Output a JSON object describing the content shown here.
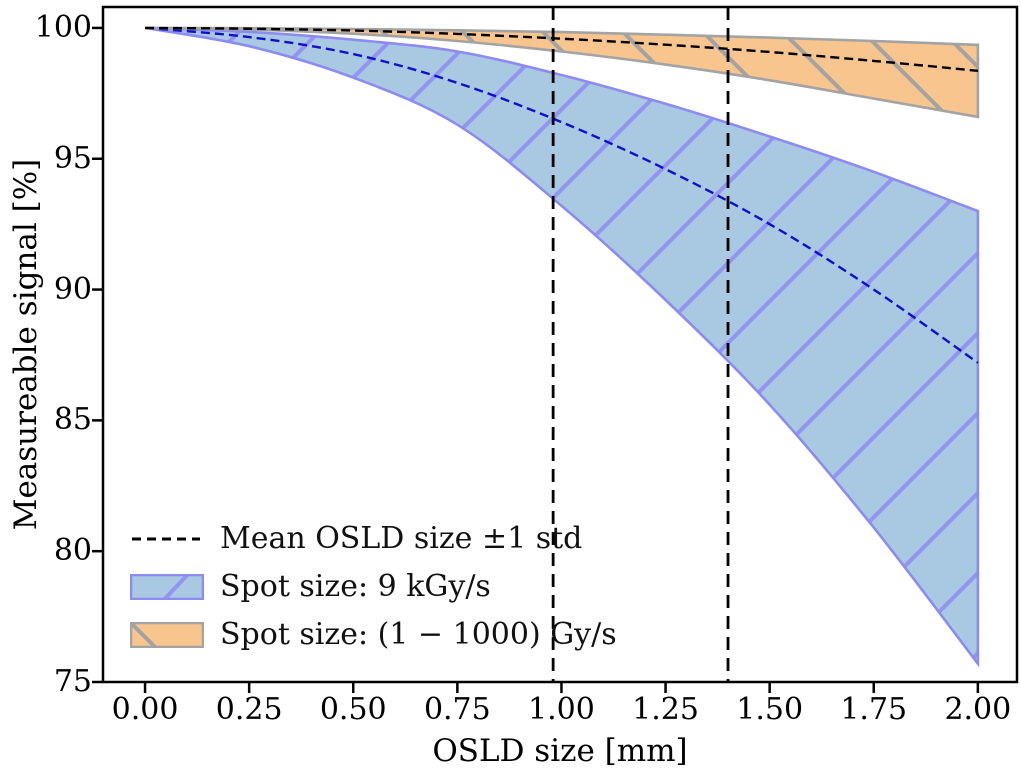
{
  "chart_data": {
    "type": "area",
    "title": "",
    "xlabel": "OSLD size [mm]",
    "ylabel": "Measureable signal [%]",
    "xlim": [
      -0.101,
      2.094
    ],
    "ylim": [
      75,
      100.8
    ],
    "xticks": [
      0,
      0.25,
      0.5,
      0.75,
      1.0,
      1.25,
      1.5,
      1.75,
      2.0
    ],
    "xtick_labels": [
      "0.00",
      "0.25",
      "0.50",
      "0.75",
      "1.00",
      "1.25",
      "1.50",
      "1.75",
      "2.00"
    ],
    "yticks": [
      75,
      80,
      85,
      90,
      95,
      100
    ],
    "ytick_labels": [
      "75",
      "80",
      "85",
      "90",
      "95",
      "100"
    ],
    "grid": false,
    "legend_position": "lower-left",
    "x": [
      0,
      0.25,
      0.5,
      0.75,
      1.0,
      1.25,
      1.5,
      1.75,
      2.0
    ],
    "bands": [
      {
        "name": "Spot size: 9 kGy/s",
        "upper": [
          100,
          99.85,
          99.55,
          99.1,
          98.2,
          97.1,
          95.85,
          94.5,
          93.0
        ],
        "mean": [
          100,
          99.65,
          99.0,
          97.9,
          96.4,
          94.6,
          92.5,
          90.0,
          87.2
        ],
        "lower": [
          100,
          99.3,
          98.1,
          96.3,
          93.2,
          89.6,
          85.6,
          80.9,
          75.7
        ],
        "fill": "#a9c8e2",
        "hatch": "/",
        "hatch_color": "#9494f2",
        "edge_color": "#8c8cf0",
        "mean_line_color": "#1010cc",
        "mean_line_style": "dashed"
      },
      {
        "name": "Spot size: (1 − 1000) Gy/s",
        "upper": [
          100,
          99.99,
          99.96,
          99.91,
          99.84,
          99.74,
          99.63,
          99.5,
          99.35
        ],
        "mean": [
          100,
          99.97,
          99.9,
          99.77,
          99.59,
          99.36,
          99.08,
          98.74,
          98.36
        ],
        "lower": [
          100,
          99.94,
          99.78,
          99.5,
          99.1,
          98.6,
          98.0,
          97.3,
          96.6
        ],
        "fill": "#f9c58e",
        "hatch": "\\",
        "hatch_color": "#a3a3a3",
        "edge_color": "#a3a3a3",
        "mean_line_color": "#000000",
        "mean_line_style": "dashed"
      }
    ],
    "vlines": {
      "label": "Mean OSLD size ±1 std",
      "x": [
        0.98,
        1.4
      ],
      "color": "#000000",
      "style": "dashed"
    }
  },
  "legend": {
    "items": [
      {
        "label": "Mean OSLD size ±1 std",
        "swatch": "dashed-black-line"
      },
      {
        "label": "Spot size: 9 kGy/s",
        "swatch": "blue-hatched-patch"
      },
      {
        "label": "Spot size: (1 − 1000) Gy/s",
        "swatch": "orange-hatched-patch"
      }
    ]
  },
  "axis_color": "#000000"
}
